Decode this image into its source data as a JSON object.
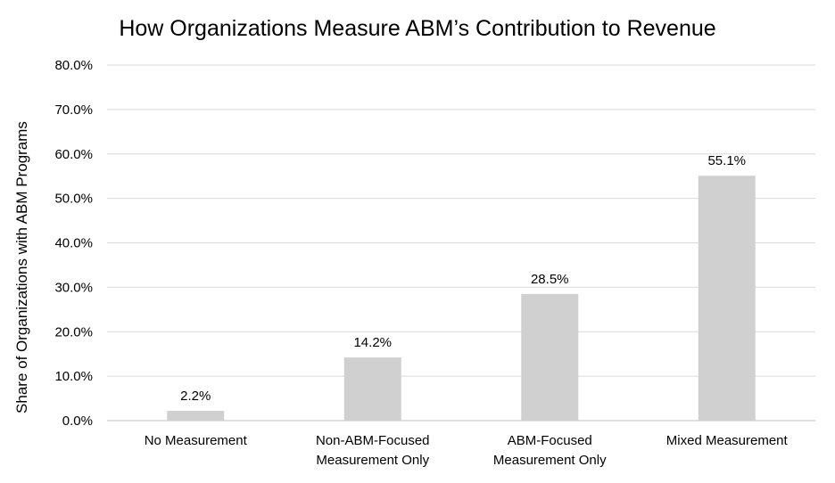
{
  "chart_data": {
    "type": "bar",
    "title": "How Organizations Measure ABM’s Contribution to Revenue",
    "xlabel": "",
    "ylabel": "Share of Organizations with ABM Programs",
    "categories": [
      [
        "No Measurement"
      ],
      [
        "Non-ABM-Focused",
        "Measurement Only"
      ],
      [
        "ABM-Focused",
        "Measurement Only"
      ],
      [
        "Mixed Measurement"
      ]
    ],
    "values": [
      2.2,
      14.2,
      28.5,
      55.1
    ],
    "data_labels": [
      "2.2%",
      "14.2%",
      "28.5%",
      "55.1%"
    ],
    "ylim": [
      0,
      80
    ],
    "yticks": [
      0,
      10,
      20,
      30,
      40,
      50,
      60,
      70,
      80
    ],
    "ytick_labels": [
      "0.0%",
      "10.0%",
      "20.0%",
      "30.0%",
      "40.0%",
      "50.0%",
      "60.0%",
      "70.0%",
      "80.0%"
    ],
    "grid": true,
    "legend": "none",
    "bar_color": "#d0d0d0"
  }
}
